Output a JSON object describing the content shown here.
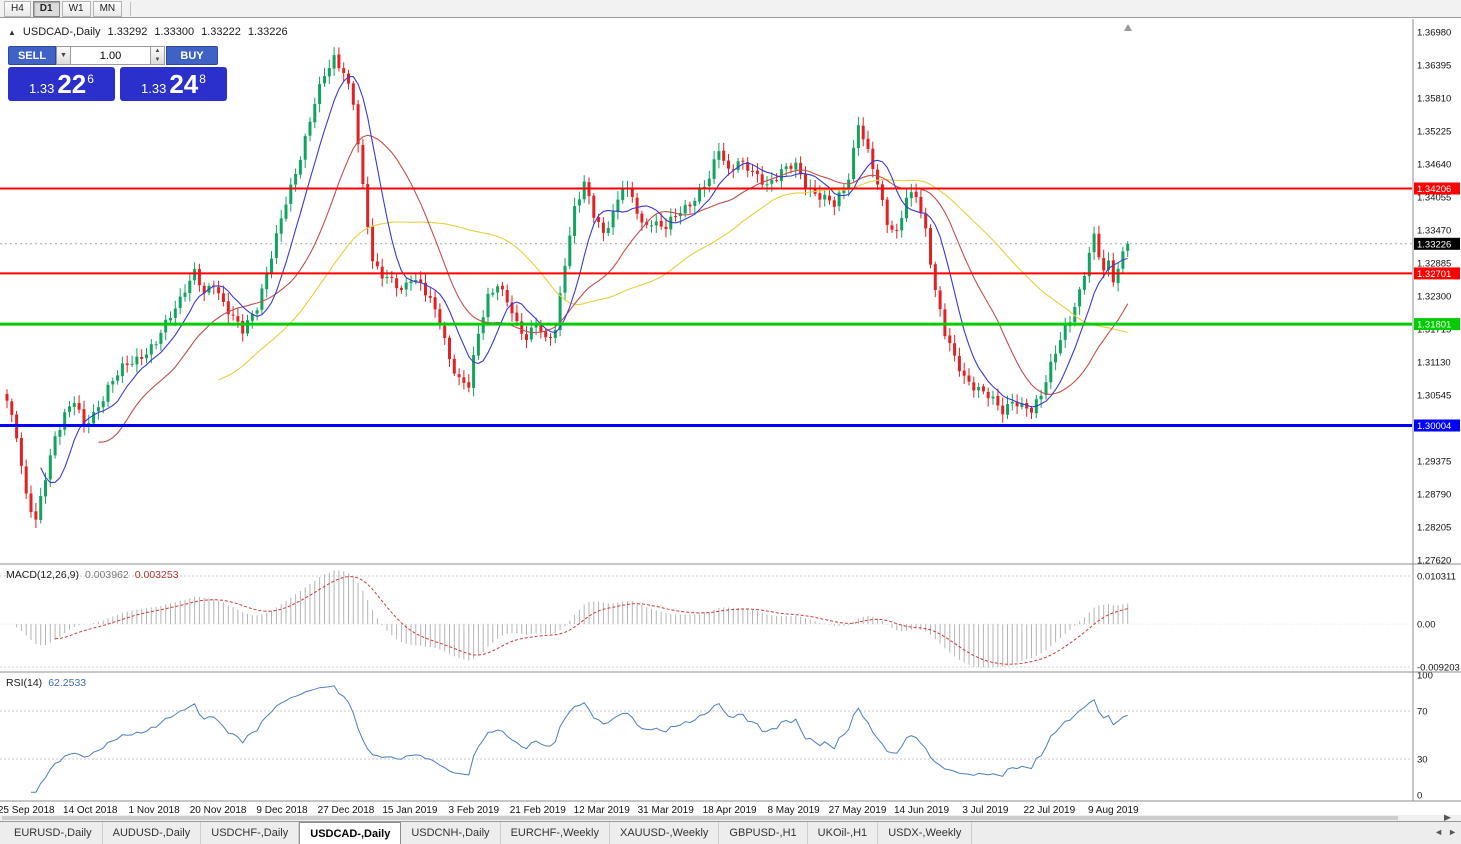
{
  "toolbar": {
    "timeframes": [
      {
        "label": "H4",
        "active": false
      },
      {
        "label": "D1",
        "active": true
      },
      {
        "label": "W1",
        "active": false
      },
      {
        "label": "MN",
        "active": false
      }
    ]
  },
  "header": {
    "symbol": "USDCAD-,Daily",
    "open": "1.33292",
    "high": "1.33300",
    "low": "1.33222",
    "close": "1.33226"
  },
  "one_click": {
    "sell_label": "SELL",
    "buy_label": "BUY",
    "volume": "1.00",
    "bid_small": "1.33",
    "bid_big": "22",
    "bid_sup": "6",
    "ask_small": "1.33",
    "ask_big": "24",
    "ask_sup": "8"
  },
  "panes": {
    "macd": {
      "name": "MACD(12,26,9)",
      "value": "0.003962",
      "signal": "0.003253"
    },
    "rsi": {
      "name": "RSI(14)",
      "value": "62.2533"
    }
  },
  "tabs": {
    "items": [
      "EURUSD-,Daily",
      "AUDUSD-,Daily",
      "USDCHF-,Daily",
      "USDCAD-,Daily",
      "USDCNH-,Daily",
      "EURCHF-,Weekly",
      "XAUUSD-,Weekly",
      "GBPUSD-,H1",
      "UKOil-,H1",
      "USDX-,Weekly"
    ],
    "active_index": 3
  },
  "chart_data": {
    "type": "candlestick",
    "title": "USDCAD-,Daily",
    "timeframe": "D1",
    "price_max": 1.3698,
    "price_min": 1.2762,
    "axis_labels": [
      "1.36980",
      "1.36395",
      "1.35810",
      "1.35225",
      "1.34640",
      "1.34055",
      "1.33470",
      "1.32885",
      "1.32300",
      "1.31715",
      "1.31130",
      "1.30545",
      "1.29960",
      "1.29375",
      "1.28790",
      "1.28205",
      "1.27620"
    ],
    "x_labels": [
      "25 Sep 2018",
      "14 Oct 2018",
      "1 Nov 2018",
      "20 Nov 2018",
      "9 Dec 2018",
      "27 Dec 2018",
      "15 Jan 2019",
      "3 Feb 2019",
      "21 Feb 2019",
      "12 Mar 2019",
      "31 Mar 2019",
      "18 Apr 2019",
      "8 May 2019",
      "27 May 2019",
      "14 Jun 2019",
      "3 Jul 2019",
      "22 Jul 2019",
      "9 Aug 2019"
    ],
    "candle_count": 234,
    "last_close": 1.33226,
    "last_bar_ohlc": [
      1.33292,
      1.333,
      1.33222,
      1.33226
    ],
    "noise": 0.0006,
    "bull_color": "#12a35f",
    "bear_color": "#e02224",
    "anchors": [
      [
        0,
        1.304
      ],
      [
        2,
        1.2985
      ],
      [
        4,
        1.288
      ],
      [
        6,
        1.283
      ],
      [
        8,
        1.2905
      ],
      [
        10,
        1.298
      ],
      [
        12,
        1.3025
      ],
      [
        14,
        1.3045
      ],
      [
        16,
        1.2995
      ],
      [
        18,
        1.302
      ],
      [
        21,
        1.307
      ],
      [
        24,
        1.31
      ],
      [
        27,
        1.312
      ],
      [
        31,
        1.3145
      ],
      [
        34,
        1.3195
      ],
      [
        37,
        1.3245
      ],
      [
        39,
        1.327
      ],
      [
        41,
        1.323
      ],
      [
        43,
        1.3255
      ],
      [
        45,
        1.322
      ],
      [
        47,
        1.319
      ],
      [
        49,
        1.3165
      ],
      [
        52,
        1.3215
      ],
      [
        55,
        1.33
      ],
      [
        58,
        1.3395
      ],
      [
        61,
        1.348
      ],
      [
        64,
        1.357
      ],
      [
        66,
        1.362
      ],
      [
        68,
        1.3655
      ],
      [
        70,
        1.363
      ],
      [
        72,
        1.357
      ],
      [
        74,
        1.342
      ],
      [
        76,
        1.3295
      ],
      [
        78,
        1.327
      ],
      [
        80,
        1.3255
      ],
      [
        82,
        1.3235
      ],
      [
        84,
        1.3265
      ],
      [
        86,
        1.3255
      ],
      [
        88,
        1.322
      ],
      [
        90,
        1.318
      ],
      [
        92,
        1.312
      ],
      [
        94,
        1.3085
      ],
      [
        96,
        1.307
      ],
      [
        98,
        1.316
      ],
      [
        100,
        1.323
      ],
      [
        102,
        1.3255
      ],
      [
        104,
        1.322
      ],
      [
        106,
        1.3175
      ],
      [
        108,
        1.3155
      ],
      [
        110,
        1.319
      ],
      [
        112,
        1.315
      ],
      [
        114,
        1.3165
      ],
      [
        116,
        1.329
      ],
      [
        118,
        1.339
      ],
      [
        120,
        1.343
      ],
      [
        122,
        1.337
      ],
      [
        124,
        1.334
      ],
      [
        126,
        1.338
      ],
      [
        128,
        1.3425
      ],
      [
        130,
        1.34
      ],
      [
        132,
        1.3355
      ],
      [
        134,
        1.3365
      ],
      [
        137,
        1.335
      ],
      [
        140,
        1.338
      ],
      [
        143,
        1.3405
      ],
      [
        146,
        1.3435
      ],
      [
        148,
        1.349
      ],
      [
        150,
        1.3455
      ],
      [
        152,
        1.347
      ],
      [
        155,
        1.3445
      ],
      [
        158,
        1.343
      ],
      [
        161,
        1.345
      ],
      [
        164,
        1.346
      ],
      [
        166,
        1.343
      ],
      [
        169,
        1.3405
      ],
      [
        172,
        1.339
      ],
      [
        175,
        1.3445
      ],
      [
        177,
        1.3535
      ],
      [
        179,
        1.348
      ],
      [
        181,
        1.343
      ],
      [
        183,
        1.3365
      ],
      [
        185,
        1.334
      ],
      [
        187,
        1.34
      ],
      [
        189,
        1.341
      ],
      [
        191,
        1.335
      ],
      [
        193,
        1.324
      ],
      [
        195,
        1.316
      ],
      [
        197,
        1.312
      ],
      [
        199,
        1.309
      ],
      [
        201,
        1.307
      ],
      [
        203,
        1.3055
      ],
      [
        205,
        1.3045
      ],
      [
        207,
        1.303
      ],
      [
        209,
        1.3045
      ],
      [
        211,
        1.303
      ],
      [
        213,
        1.3025
      ],
      [
        215,
        1.306
      ],
      [
        217,
        1.311
      ],
      [
        219,
        1.315
      ],
      [
        221,
        1.3185
      ],
      [
        223,
        1.324
      ],
      [
        225,
        1.331
      ],
      [
        226,
        1.3335
      ],
      [
        227,
        1.33
      ],
      [
        228,
        1.327
      ],
      [
        229,
        1.3285
      ],
      [
        230,
        1.326
      ],
      [
        231,
        1.328
      ],
      [
        232,
        1.331
      ],
      [
        233,
        1.33226
      ]
    ],
    "moving_averages": [
      {
        "period": 45,
        "color": "#e8cf3e",
        "name": "ma-slow"
      },
      {
        "period": 20,
        "color": "#c0504d",
        "name": "ma-medium"
      },
      {
        "period": 8,
        "color": "#3a3ad0",
        "name": "ma-fast"
      }
    ],
    "levels": [
      {
        "price": 1.34206,
        "label": "1.34206",
        "color": "#ff0000",
        "width": 2
      },
      {
        "price": 1.32701,
        "label": "1.32701",
        "color": "#ff0000",
        "width": 2
      },
      {
        "price": 1.31801,
        "label": "1.31801",
        "color": "#00cc00",
        "width": 3
      },
      {
        "price": 1.30004,
        "label": "1.30004",
        "color": "#0000ff",
        "width": 3
      }
    ],
    "current_price": {
      "value": 1.33226,
      "label": "1.33226"
    },
    "macd": {
      "params": [
        12,
        26,
        9
      ],
      "value": 0.003962,
      "signal": 0.003253,
      "max": 0.010311,
      "min": -0.009203,
      "axis": [
        "0.010311",
        "0.00",
        "-0.009203"
      ],
      "histogram_color": "#b4b4b4",
      "signal_color": "#cc3b3b"
    },
    "rsi": {
      "period": 14,
      "value": 62.2533,
      "axis": [
        "100",
        "70",
        "30",
        "0"
      ],
      "levels": [
        70,
        30
      ],
      "line_color": "#4c7fc0"
    }
  }
}
